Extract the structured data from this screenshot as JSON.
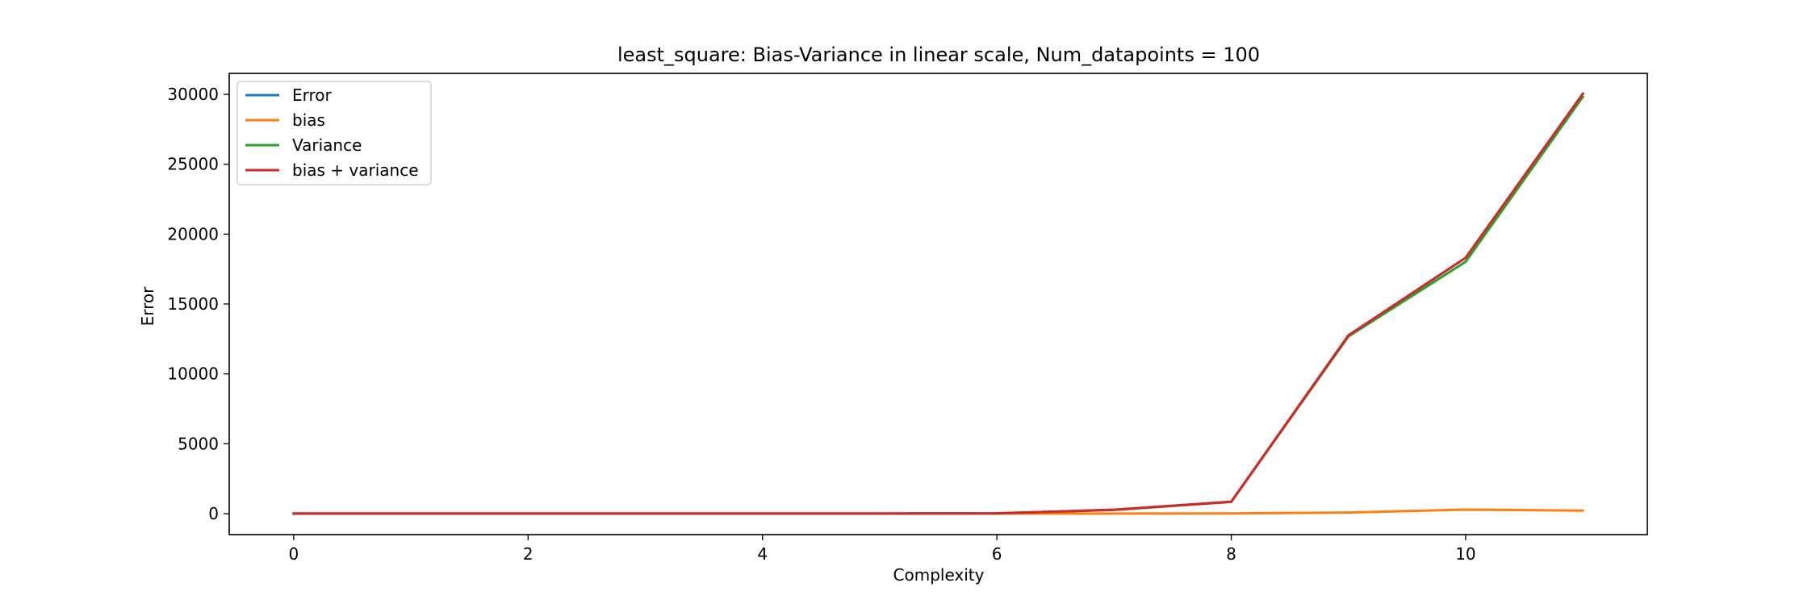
{
  "chart_data": {
    "type": "line",
    "title": "least_square: Bias-Variance in linear scale, Num_datapoints = 100",
    "xlabel": "Complexity",
    "ylabel": "Error",
    "xlim": [
      -0.55,
      11.55
    ],
    "ylim": [
      -1500,
      31500
    ],
    "xticks": [
      0,
      2,
      4,
      6,
      8,
      10
    ],
    "yticks": [
      0,
      5000,
      10000,
      15000,
      20000,
      25000,
      30000
    ],
    "grid": false,
    "legend_position": "top-left",
    "x": [
      0,
      1,
      2,
      3,
      4,
      5,
      6,
      7,
      8,
      9,
      10,
      11
    ],
    "series": [
      {
        "name": "Error",
        "color": "#1f77b4",
        "values": [
          5,
          5,
          5,
          5,
          5,
          10,
          20,
          280,
          850,
          12750,
          18300,
          30050
        ]
      },
      {
        "name": "bias",
        "color": "#ff7f0e",
        "values": [
          5,
          5,
          5,
          5,
          5,
          5,
          5,
          10,
          15,
          80,
          290,
          220
        ]
      },
      {
        "name": "Variance",
        "color": "#2ca02c",
        "values": [
          5,
          5,
          5,
          5,
          5,
          5,
          15,
          270,
          840,
          12680,
          18020,
          29820
        ]
      },
      {
        "name": "bias + variance",
        "color": "#d62728",
        "values": [
          5,
          5,
          5,
          5,
          5,
          10,
          20,
          280,
          855,
          12760,
          18310,
          30040
        ]
      }
    ]
  }
}
